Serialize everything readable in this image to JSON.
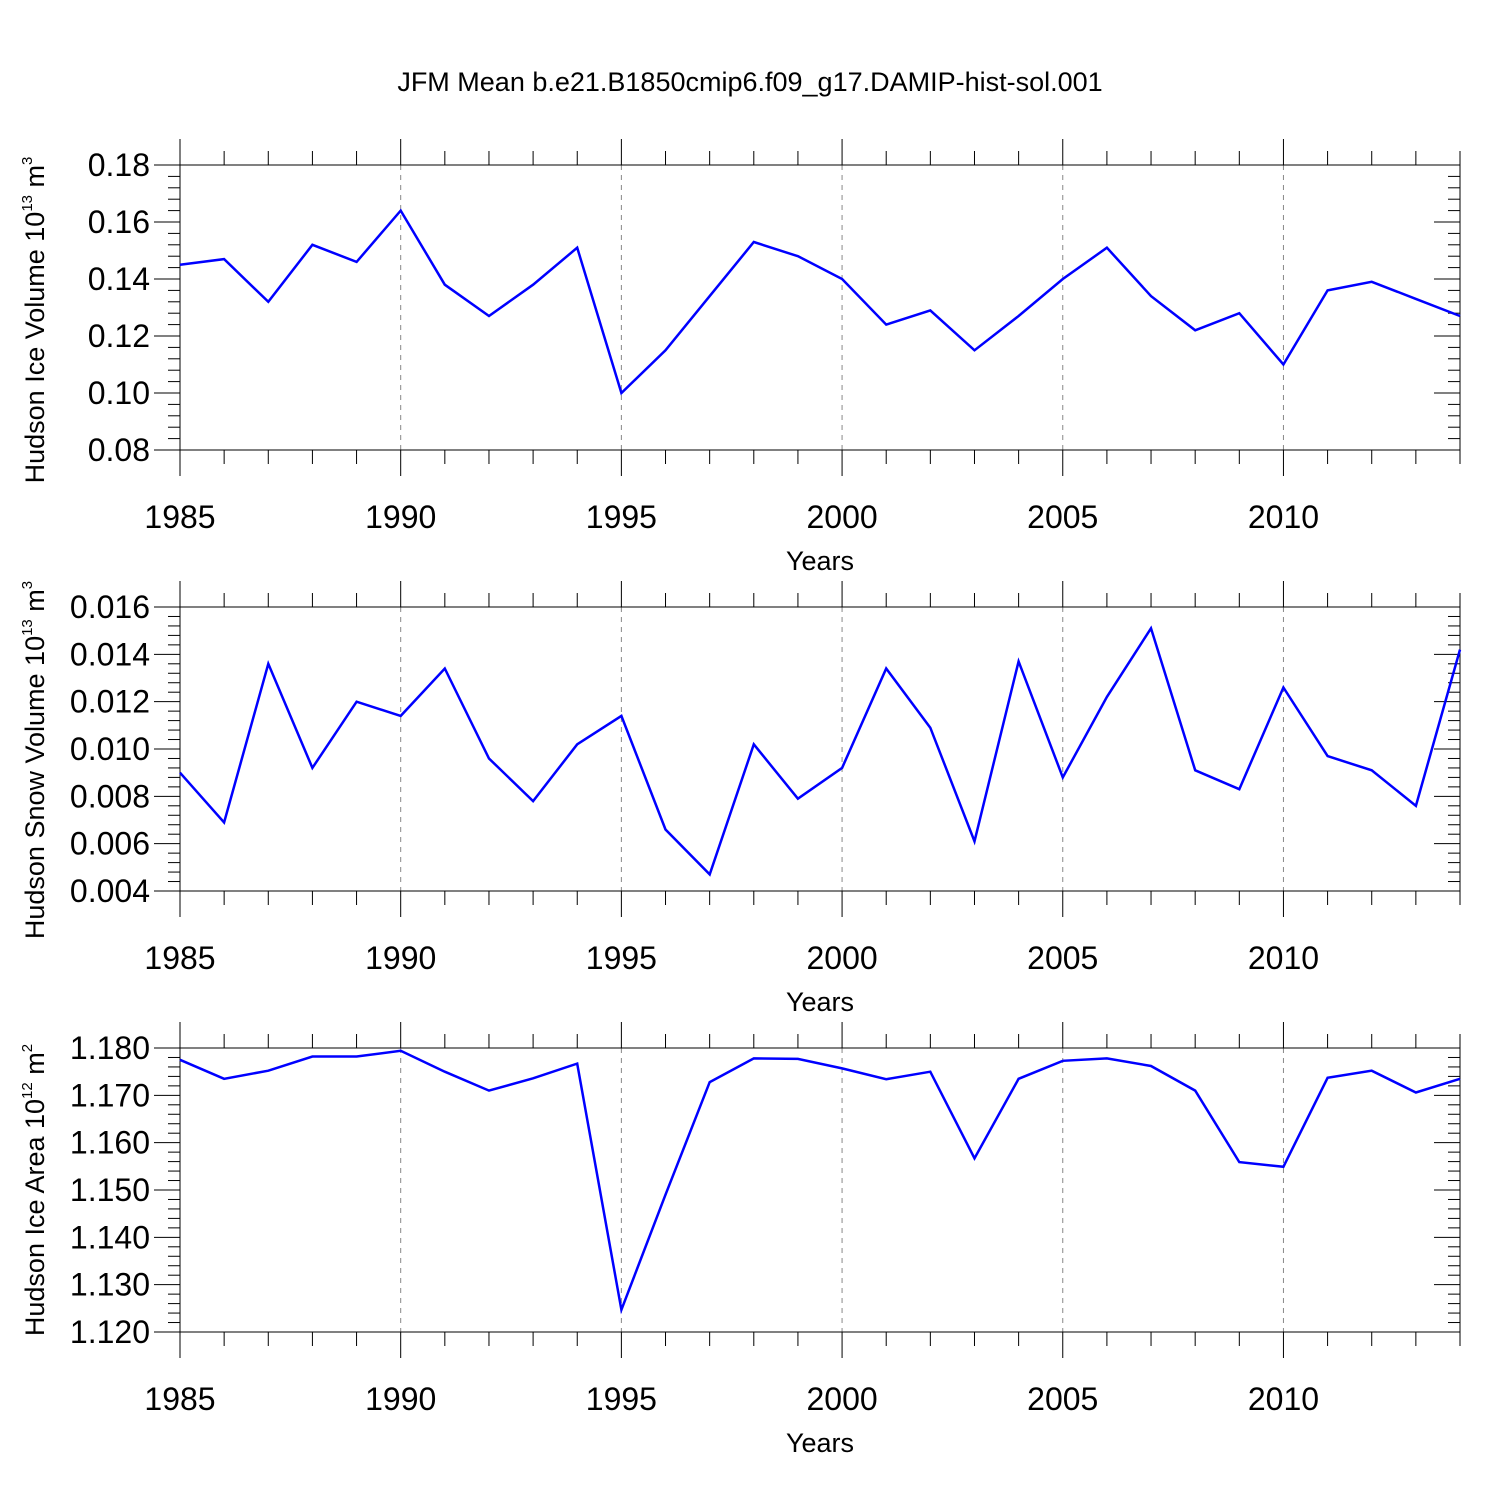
{
  "title": "JFM Mean b.e21.B1850cmip6.f09_g17.DAMIP-hist-sol.001",
  "colors": {
    "line": "#0000ff",
    "axis": "#000000",
    "grid": "#888888"
  },
  "chart_data": [
    {
      "type": "line",
      "xlabel": "Years",
      "ylabel": "Hudson Ice Volume 10",
      "ylabel_exp": "13",
      "ylabel_unit": " m",
      "ylabel_unit_exp": "3",
      "xlim": [
        1985,
        2014
      ],
      "ylim": [
        0.08,
        0.18
      ],
      "x_ticks": [
        "1985",
        "1990",
        "1995",
        "2000",
        "2005",
        "2010"
      ],
      "y_ticks": [
        "0.08",
        "0.10",
        "0.12",
        "0.14",
        "0.16",
        "0.18"
      ],
      "grid": "vertical dashed at labeled years",
      "x": [
        1985,
        1986,
        1987,
        1988,
        1989,
        1990,
        1991,
        1992,
        1993,
        1994,
        1995,
        1996,
        1997,
        1998,
        1999,
        2000,
        2001,
        2002,
        2003,
        2004,
        2005,
        2006,
        2007,
        2008,
        2009,
        2010,
        2011,
        2012,
        2013,
        2014
      ],
      "values": [
        0.145,
        0.147,
        0.132,
        0.152,
        0.146,
        0.164,
        0.138,
        0.127,
        0.138,
        0.151,
        0.1,
        0.115,
        0.134,
        0.153,
        0.148,
        0.14,
        0.124,
        0.129,
        0.115,
        0.127,
        0.14,
        0.151,
        0.134,
        0.122,
        0.128,
        0.11,
        0.136,
        0.139,
        0.133,
        0.127
      ]
    },
    {
      "type": "line",
      "xlabel": "Years",
      "ylabel": "Hudson Snow Volume 10",
      "ylabel_exp": "13",
      "ylabel_unit": " m",
      "ylabel_unit_exp": "3",
      "xlim": [
        1985,
        2014
      ],
      "ylim": [
        0.004,
        0.016
      ],
      "x_ticks": [
        "1985",
        "1990",
        "1995",
        "2000",
        "2005",
        "2010"
      ],
      "y_ticks": [
        "0.004",
        "0.006",
        "0.008",
        "0.010",
        "0.012",
        "0.014",
        "0.016"
      ],
      "grid": "vertical dashed at labeled years",
      "x": [
        1985,
        1986,
        1987,
        1988,
        1989,
        1990,
        1991,
        1992,
        1993,
        1994,
        1995,
        1996,
        1997,
        1998,
        1999,
        2000,
        2001,
        2002,
        2003,
        2004,
        2005,
        2006,
        2007,
        2008,
        2009,
        2010,
        2011,
        2012,
        2013,
        2014
      ],
      "values": [
        0.009,
        0.0069,
        0.0136,
        0.0092,
        0.012,
        0.0114,
        0.0134,
        0.0096,
        0.0078,
        0.0102,
        0.0114,
        0.0066,
        0.0047,
        0.0102,
        0.0079,
        0.0092,
        0.0134,
        0.0109,
        0.0061,
        0.0137,
        0.0088,
        0.0122,
        0.0151,
        0.0091,
        0.0083,
        0.0126,
        0.0097,
        0.0091,
        0.0076,
        0.0142
      ]
    },
    {
      "type": "line",
      "xlabel": "Years",
      "ylabel": "Hudson Ice Area 10",
      "ylabel_exp": "12",
      "ylabel_unit": " m",
      "ylabel_unit_exp": "2",
      "xlim": [
        1985,
        2014
      ],
      "ylim": [
        1.12,
        1.18
      ],
      "x_ticks": [
        "1985",
        "1990",
        "1995",
        "2000",
        "2005",
        "2010"
      ],
      "y_ticks": [
        "1.120",
        "1.130",
        "1.140",
        "1.150",
        "1.160",
        "1.170",
        "1.180"
      ],
      "grid": "vertical dashed at labeled years",
      "x": [
        1985,
        1986,
        1987,
        1988,
        1989,
        1990,
        1991,
        1992,
        1993,
        1994,
        1995,
        1996,
        1997,
        1998,
        1999,
        2000,
        2001,
        2002,
        2003,
        2004,
        2005,
        2006,
        2007,
        2008,
        2009,
        2010,
        2011,
        2012,
        2013,
        2014
      ],
      "values": [
        1.1775,
        1.1735,
        1.1752,
        1.1782,
        1.1782,
        1.1794,
        1.175,
        1.171,
        1.1736,
        1.1767,
        1.1247,
        1.149,
        1.1728,
        1.1778,
        1.1777,
        1.1757,
        1.1734,
        1.175,
        1.1567,
        1.1735,
        1.1773,
        1.1778,
        1.1762,
        1.171,
        1.1559,
        1.1549,
        1.1737,
        1.1752,
        1.1706,
        1.1735
      ]
    }
  ]
}
